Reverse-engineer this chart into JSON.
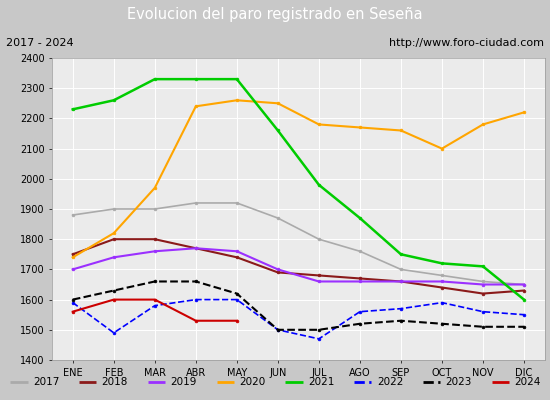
{
  "title": "Evolucion del paro registrado en Seseña",
  "subtitle_left": "2017 - 2024",
  "subtitle_right": "http://www.foro-ciudad.com",
  "xlabel_months": [
    "ENE",
    "FEB",
    "MAR",
    "ABR",
    "MAY",
    "JUN",
    "JUL",
    "AGO",
    "SEP",
    "OCT",
    "NOV",
    "DIC"
  ],
  "ylim": [
    1400,
    2400
  ],
  "yticks": [
    1400,
    1500,
    1600,
    1700,
    1800,
    1900,
    2000,
    2100,
    2200,
    2300,
    2400
  ],
  "title_bg": "#4a86c8",
  "plot_bg": "#ebebeb",
  "series": {
    "2017": {
      "color": "#aaaaaa",
      "linestyle": "-",
      "linewidth": 1.2,
      "values": [
        1880,
        1900,
        1900,
        1920,
        1920,
        1870,
        1800,
        1760,
        1700,
        1680,
        1660,
        1650
      ]
    },
    "2018": {
      "color": "#8b1a1a",
      "linestyle": "-",
      "linewidth": 1.5,
      "values": [
        1750,
        1800,
        1800,
        1770,
        1740,
        1690,
        1680,
        1670,
        1660,
        1640,
        1620,
        1630
      ]
    },
    "2019": {
      "color": "#9b30ff",
      "linestyle": "-",
      "linewidth": 1.5,
      "values": [
        1700,
        1740,
        1760,
        1770,
        1760,
        1700,
        1660,
        1660,
        1660,
        1660,
        1650,
        1650
      ]
    },
    "2020": {
      "color": "#ffa500",
      "linestyle": "-",
      "linewidth": 1.5,
      "values": [
        1740,
        1820,
        1970,
        2240,
        2260,
        2250,
        2180,
        2170,
        2160,
        2100,
        2180,
        2220
      ]
    },
    "2021": {
      "color": "#00cc00",
      "linestyle": "-",
      "linewidth": 1.8,
      "values": [
        2230,
        2260,
        2330,
        2330,
        2330,
        2160,
        1980,
        1870,
        1750,
        1720,
        1710,
        1600
      ]
    },
    "2022": {
      "color": "#0000ff",
      "linestyle": "--",
      "linewidth": 1.2,
      "values": [
        1590,
        1490,
        1580,
        1600,
        1600,
        1500,
        1470,
        1560,
        1570,
        1590,
        1560,
        1550
      ]
    },
    "2023": {
      "color": "#000000",
      "linestyle": "--",
      "linewidth": 1.5,
      "values": [
        1600,
        1630,
        1660,
        1660,
        1620,
        1500,
        1500,
        1520,
        1530,
        1520,
        1510,
        1510
      ]
    },
    "2024": {
      "color": "#cc0000",
      "linestyle": "-",
      "linewidth": 1.5,
      "values": [
        1560,
        1600,
        1600,
        1530,
        1530,
        null,
        null,
        null,
        null,
        null,
        null,
        null
      ]
    }
  },
  "legend_items": [
    [
      "2017",
      "#aaaaaa",
      "-"
    ],
    [
      "2018",
      "#8b1a1a",
      "-"
    ],
    [
      "2019",
      "#9b30ff",
      "-"
    ],
    [
      "2020",
      "#ffa500",
      "-"
    ],
    [
      "2021",
      "#00cc00",
      "-"
    ],
    [
      "2022",
      "#0000ff",
      "--"
    ],
    [
      "2023",
      "#000000",
      "--"
    ],
    [
      "2024",
      "#cc0000",
      "-"
    ]
  ]
}
